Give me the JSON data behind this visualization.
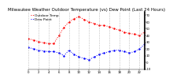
{
  "title": "Milwaukee Weather Outdoor Temperature (vs) Dew Point (Last 24 Hours)",
  "legend": [
    "Outdoor Temp",
    "Dew Point"
  ],
  "line_colors": [
    "red",
    "blue"
  ],
  "x_values": [
    0,
    1,
    2,
    3,
    4,
    5,
    6,
    7,
    8,
    9,
    10,
    11,
    12,
    13,
    14,
    15,
    16,
    17,
    18,
    19,
    20,
    21,
    22,
    23
  ],
  "temp_values": [
    35,
    33,
    31,
    29,
    28,
    28,
    40,
    52,
    60,
    65,
    68,
    64,
    60,
    58,
    55,
    55,
    53,
    50,
    48,
    45,
    43,
    42,
    40,
    45
  ],
  "dew_values": [
    22,
    20,
    18,
    17,
    16,
    16,
    14,
    10,
    18,
    12,
    8,
    6,
    4,
    8,
    12,
    14,
    16,
    18,
    18,
    16,
    14,
    16,
    20,
    27
  ],
  "ylim": [
    -10,
    75
  ],
  "xlim": [
    0,
    23
  ],
  "background_color": "#ffffff",
  "grid_color": "#888888",
  "ytick_labels": [
    "70",
    "60",
    "50",
    "40",
    "30",
    "20",
    "10",
    "0",
    "-10"
  ],
  "ytick_values": [
    70,
    60,
    50,
    40,
    30,
    20,
    10,
    0,
    -10
  ],
  "xtick_values": [
    0,
    2,
    4,
    6,
    8,
    10,
    12,
    14,
    16,
    18,
    20,
    22
  ],
  "title_fontsize": 4.0,
  "legend_fontsize": 3.2,
  "tick_fontsize": 2.8,
  "line_width": 0.7,
  "marker_size": 1.5
}
